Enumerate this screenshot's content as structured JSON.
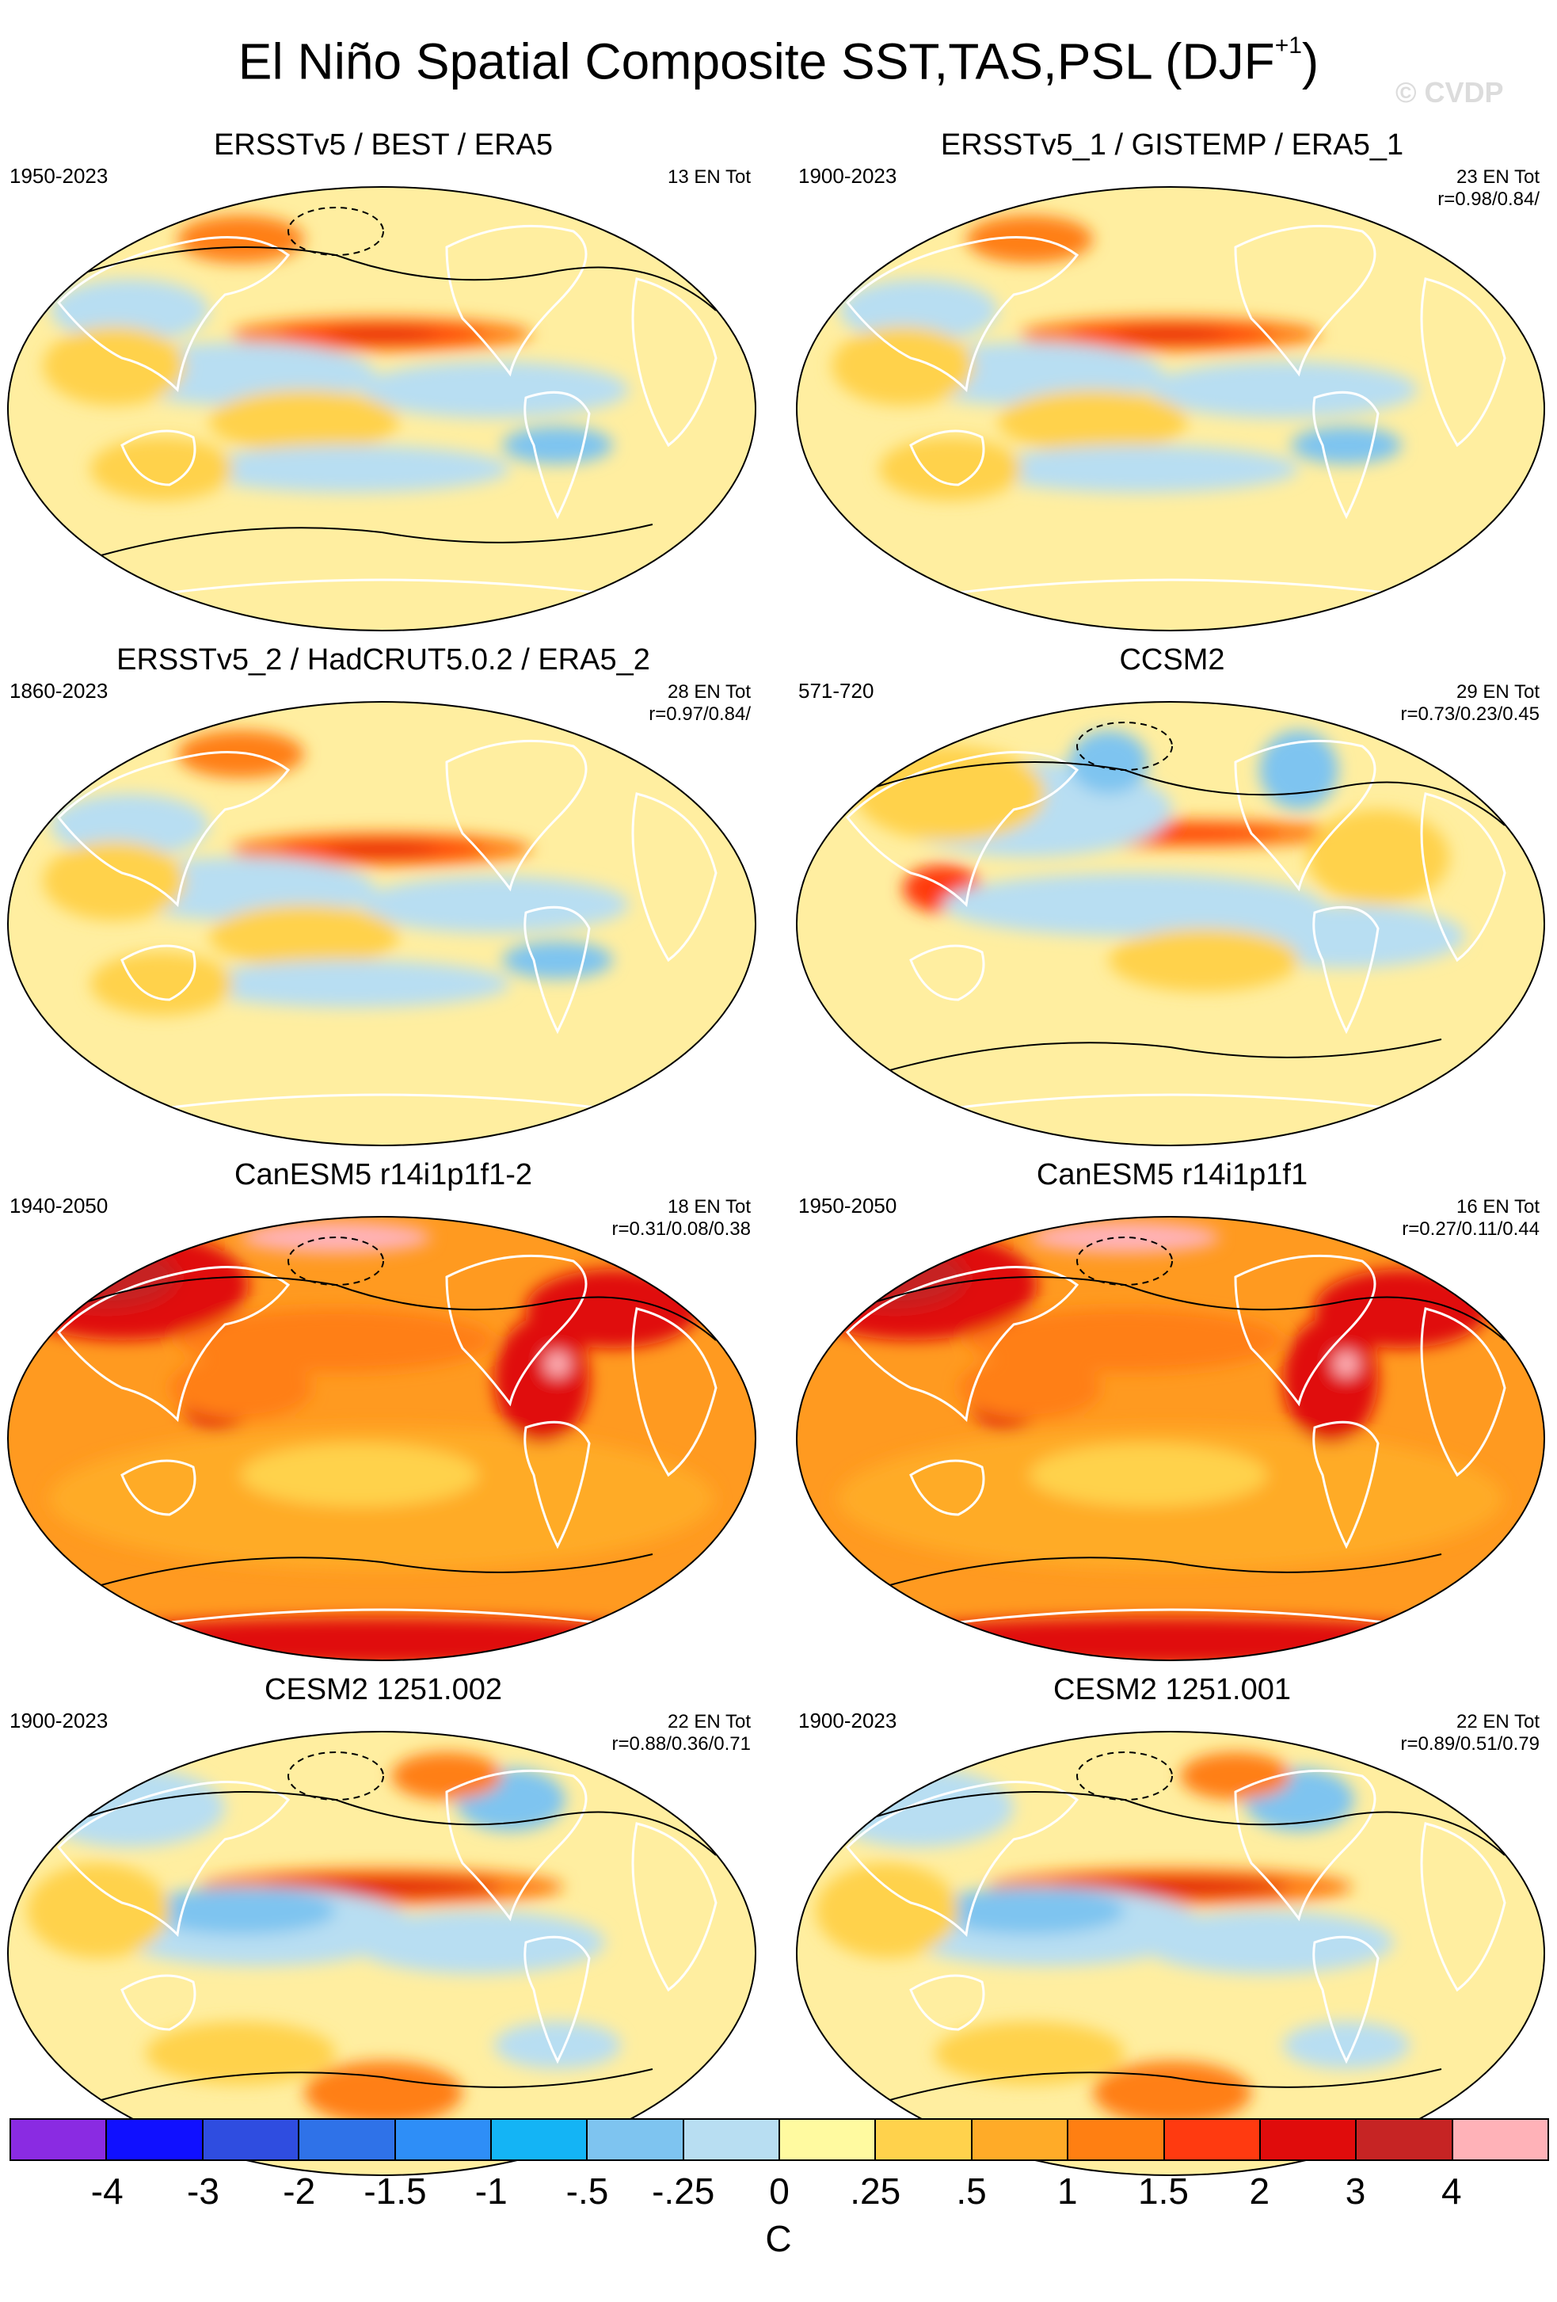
{
  "figure": {
    "title": "El Niño Spatial Composite SST,TAS,PSL (DJF",
    "title_superscript": "+1",
    "title_suffix": ")",
    "watermark": "© CVDP"
  },
  "panels": [
    {
      "title": "ERSSTv5 / BEST / ERA5",
      "years": "1950-2023",
      "en_total": "13 EN Tot",
      "pattern_corr": "",
      "variant": "obs",
      "has_psl_contours": true
    },
    {
      "title": "ERSSTv5_1 / GISTEMP / ERA5_1",
      "years": "1900-2023",
      "en_total": "23 EN Tot",
      "pattern_corr": "r=0.98/0.84/",
      "variant": "obs",
      "has_psl_contours": false
    },
    {
      "title": "ERSSTv5_2 / HadCRUT5.0.2 / ERA5_2",
      "years": "1860-2023",
      "en_total": "28 EN Tot",
      "pattern_corr": "r=0.97/0.84/",
      "variant": "obs",
      "has_psl_contours": false
    },
    {
      "title": "CCSM2",
      "years": "571-720",
      "en_total": "29 EN Tot",
      "pattern_corr": "r=0.73/0.23/0.45",
      "variant": "ccsm",
      "has_psl_contours": true
    },
    {
      "title": "CanESM5 r14i1p1f1-2",
      "years": "1940-2050",
      "en_total": "18 EN Tot",
      "pattern_corr": "r=0.31/0.08/0.38",
      "variant": "warm",
      "has_psl_contours": true
    },
    {
      "title": "CanESM5 r14i1p1f1",
      "years": "1950-2050",
      "en_total": "16 EN Tot",
      "pattern_corr": "r=0.27/0.11/0.44",
      "variant": "warm",
      "has_psl_contours": true
    },
    {
      "title": "CESM2 1251.002",
      "years": "1900-2023",
      "en_total": "22 EN Tot",
      "pattern_corr": "r=0.88/0.36/0.71",
      "variant": "cesm",
      "has_psl_contours": true
    },
    {
      "title": "CESM2 1251.001",
      "years": "1900-2023",
      "en_total": "22 EN Tot",
      "pattern_corr": "r=0.89/0.51/0.79",
      "variant": "cesm",
      "has_psl_contours": true
    }
  ],
  "colorbar": {
    "units": "C",
    "colors": [
      "#8a2be2",
      "#1010ff",
      "#2f4de0",
      "#2f72e8",
      "#2e8ef7",
      "#14b4f5",
      "#7ec4f0",
      "#b8def2",
      "#fffaa0",
      "#ffd24c",
      "#ffab28",
      "#ff7f12",
      "#ff3a10",
      "#e00c0c",
      "#c62424",
      "#ffb2b8"
    ],
    "labels": [
      "-4",
      "-3",
      "-2",
      "-1.5",
      "-1",
      "-.5",
      "-.25",
      "0",
      ".25",
      ".5",
      "1",
      "1.5",
      "2",
      "3",
      "4"
    ]
  }
}
